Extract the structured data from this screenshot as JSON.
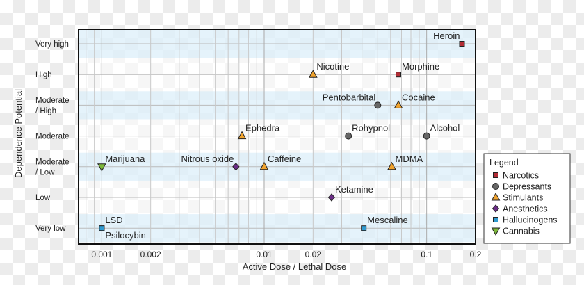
{
  "chart_data": {
    "type": "scatter",
    "title": "",
    "xlabel": "Active Dose / Lethal Dose",
    "ylabel": "Dependence Potential",
    "xscale": "log",
    "xlim": [
      0.00072,
      0.2
    ],
    "xticks": [
      {
        "value": 0.001,
        "label": "0.001"
      },
      {
        "value": 0.002,
        "label": "0.002"
      },
      {
        "value": 0.01,
        "label": "0.01"
      },
      {
        "value": 0.02,
        "label": "0.02"
      },
      {
        "value": 0.1,
        "label": "0.1"
      },
      {
        "value": 0.2,
        "label": "0.2"
      }
    ],
    "ylevels": [
      "Very high",
      "High",
      "Moderate / High",
      "Moderate",
      "Moderate / Low",
      "Low",
      "Very low"
    ],
    "ylevel_lines": [
      [
        "Very high"
      ],
      [
        "High"
      ],
      [
        "Moderate",
        "/ High"
      ],
      [
        "Moderate"
      ],
      [
        "Moderate",
        "/ Low"
      ],
      [
        "Low"
      ],
      [
        "Very low"
      ]
    ],
    "grid": true,
    "legend": {
      "title": "Legend",
      "placement": "right",
      "entries": [
        {
          "name": "Narcotics",
          "marker": "square",
          "color": "#b22d35"
        },
        {
          "name": "Depressants",
          "marker": "circle",
          "color": "#666666"
        },
        {
          "name": "Stimulants",
          "marker": "triangle-up",
          "color": "#f0a32e"
        },
        {
          "name": "Anesthetics",
          "marker": "diamond",
          "color": "#6a2c86"
        },
        {
          "name": "Hallucinogens",
          "marker": "square",
          "color": "#2f9ad0"
        },
        {
          "name": "Cannabis",
          "marker": "triangle-down",
          "color": "#7db83a"
        }
      ]
    },
    "points": [
      {
        "label": "Heroin",
        "x": 0.165,
        "y": "Very high",
        "category": "Narcotics",
        "label_pos": "above-left"
      },
      {
        "label": "Morphine",
        "x": 0.067,
        "y": "High",
        "category": "Narcotics",
        "label_pos": "above-right"
      },
      {
        "label": "Nicotine",
        "x": 0.02,
        "y": "High",
        "category": "Stimulants",
        "label_pos": "above-right"
      },
      {
        "label": "Pentobarbital",
        "x": 0.05,
        "y": "Moderate / High",
        "category": "Depressants",
        "label_pos": "above-left"
      },
      {
        "label": "Cocaine",
        "x": 0.067,
        "y": "Moderate / High",
        "category": "Stimulants",
        "label_pos": "above-right"
      },
      {
        "label": "Ephedra",
        "x": 0.0073,
        "y": "Moderate",
        "category": "Stimulants",
        "label_pos": "above-right"
      },
      {
        "label": "Rohypnol",
        "x": 0.033,
        "y": "Moderate",
        "category": "Depressants",
        "label_pos": "above-right"
      },
      {
        "label": "Alcohol",
        "x": 0.1,
        "y": "Moderate",
        "category": "Depressants",
        "label_pos": "above-right"
      },
      {
        "label": "Marijuana",
        "x": 0.001,
        "y": "Moderate / Low",
        "category": "Cannabis",
        "label_pos": "above-right"
      },
      {
        "label": "Nitrous oxide",
        "x": 0.0067,
        "y": "Moderate / Low",
        "category": "Anesthetics",
        "label_pos": "above-left"
      },
      {
        "label": "Caffeine",
        "x": 0.01,
        "y": "Moderate / Low",
        "category": "Stimulants",
        "label_pos": "above-right"
      },
      {
        "label": "MDMA",
        "x": 0.061,
        "y": "Moderate / Low",
        "category": "Stimulants",
        "label_pos": "above-right"
      },
      {
        "label": "Ketamine",
        "x": 0.026,
        "y": "Low",
        "category": "Anesthetics",
        "label_pos": "above-right"
      },
      {
        "label": "LSD",
        "x": 0.001,
        "y": "Very low",
        "category": "Hallucinogens",
        "label_pos": "above-right"
      },
      {
        "label": "Psilocybin",
        "x": 0.001,
        "y": "Very low",
        "category": "Hallucinogens",
        "label_pos": "below-right"
      },
      {
        "label": "Mescaline",
        "x": 0.041,
        "y": "Very low",
        "category": "Hallucinogens",
        "label_pos": "above-right"
      }
    ]
  }
}
